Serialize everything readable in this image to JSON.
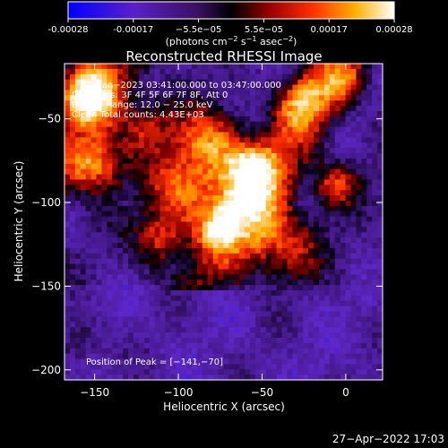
{
  "colorbar": {
    "ticks": [
      "-0.00028",
      "-0.00017",
      "−5.5e−05",
      "5.5e−05",
      "0.00017",
      "0.00028"
    ],
    "units_prefix": "(photons cm",
    "units_mid": " s",
    "units_mid2": " asec",
    "units_suffix": ")",
    "exp1": "−2",
    "exp2": "−1",
    "exp3": "−2"
  },
  "chart_data": {
    "type": "heatmap",
    "title": "Reconstructed RHESSI Image",
    "xlabel": "Heliocentric X (arcsec)",
    "ylabel": "Heliocentric Y (arcsec)",
    "xlim": [
      -168,
      22
    ],
    "ylim": [
      -206,
      -17
    ],
    "xticks": [
      {
        "value": -150,
        "label": "−150"
      },
      {
        "value": -100,
        "label": "−100"
      },
      {
        "value": -50,
        "label": "−50"
      },
      {
        "value": 0,
        "label": "0"
      }
    ],
    "yticks": [
      {
        "value": -50,
        "label": "−50"
      },
      {
        "value": -100,
        "label": "−100"
      },
      {
        "value": -150,
        "label": "−150"
      },
      {
        "value": -200,
        "label": "−200"
      }
    ],
    "annotations": [
      "7−Jan−2023 03:41:00.000 to 03:47:00.000",
      "Detectors: 3F 4F 5F 6F 7F 8F, Att 0",
      "Energy Range: 12.0 − 25.0 keV",
      "Clean     Total counts: 4.43E+03"
    ],
    "peak_label": "Position of Peak = [−141,−70]",
    "peak": [
      -141,
      -70
    ],
    "colorscale": [
      "#0000ff",
      "#5a20c8",
      "#4a1a8a",
      "#000000",
      "#8a0000",
      "#ff3000",
      "#ffb000",
      "#ffffff"
    ],
    "value_range": [
      -0.00028,
      0.00028
    ]
  },
  "footer": {
    "timestamp": "27−Apr−2022 17:03"
  }
}
